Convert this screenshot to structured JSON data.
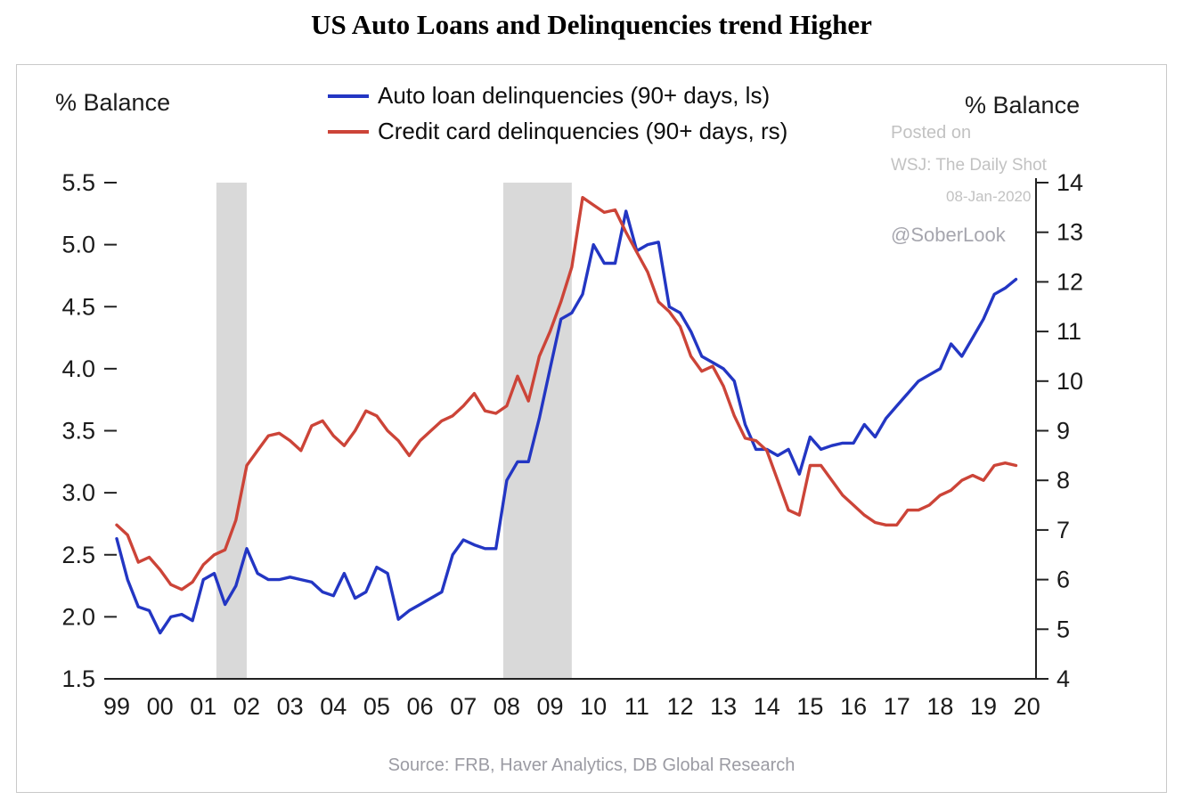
{
  "title": "US Auto Loans and Delinquencies trend Higher",
  "left_axis_label": "% Balance",
  "right_axis_label": "% Balance",
  "legend": [
    {
      "label": "Auto loan delinquencies (90+ days, ls)",
      "color": "#2336c3"
    },
    {
      "label": "Credit card delinquencies (90+ days, rs)",
      "color": "#cc4438"
    }
  ],
  "watermark": {
    "line1": "Posted on",
    "line2": "WSJ: The Daily Shot",
    "line3": "08-Jan-2020",
    "handle": "@SoberLook"
  },
  "source": "Source: FRB, Haver Analytics, DB Global Research",
  "chart_data": {
    "type": "line",
    "title": "US Auto Loans and Delinquencies trend Higher",
    "x_start": 1999,
    "x_step": 0.25,
    "x_range": [
      1999,
      2020.15
    ],
    "x_tick_labels": [
      "99",
      "00",
      "01",
      "02",
      "03",
      "04",
      "05",
      "06",
      "07",
      "08",
      "09",
      "10",
      "11",
      "12",
      "13",
      "14",
      "15",
      "16",
      "17",
      "18",
      "19",
      "20"
    ],
    "x_tick_years": [
      1999,
      2000,
      2001,
      2002,
      2003,
      2004,
      2005,
      2006,
      2007,
      2008,
      2009,
      2010,
      2011,
      2012,
      2013,
      2014,
      2015,
      2016,
      2017,
      2018,
      2019,
      2020
    ],
    "left_axis": {
      "label": "% Balance",
      "range": [
        1.5,
        5.5
      ],
      "ticks": [
        1.5,
        2.0,
        2.5,
        3.0,
        3.5,
        4.0,
        4.5,
        5.0,
        5.5
      ]
    },
    "right_axis": {
      "label": "% Balance",
      "range": [
        4,
        14
      ],
      "ticks": [
        4,
        5,
        6,
        7,
        8,
        9,
        10,
        11,
        12,
        13,
        14
      ]
    },
    "recession_bands": [
      [
        2001.3,
        2002.0
      ],
      [
        2007.92,
        2009.5
      ]
    ],
    "grid": false,
    "legend_position": "top-center",
    "colors": {
      "band": "#d9d9d9",
      "axis": "#222222"
    },
    "series": [
      {
        "key": "auto-loan-delinquencies-line",
        "name": "Auto loan delinquencies (90+ days, ls)",
        "axis": "left",
        "color": "#2336c3",
        "values": [
          2.63,
          2.3,
          2.08,
          2.05,
          1.87,
          2.0,
          2.02,
          1.97,
          2.3,
          2.35,
          2.1,
          2.25,
          2.55,
          2.35,
          2.3,
          2.3,
          2.32,
          2.3,
          2.28,
          2.2,
          2.17,
          2.35,
          2.15,
          2.2,
          2.4,
          2.35,
          1.98,
          2.05,
          2.1,
          2.15,
          2.2,
          2.5,
          2.62,
          2.58,
          2.55,
          2.55,
          3.1,
          3.25,
          3.25,
          3.6,
          4.0,
          4.4,
          4.45,
          4.6,
          5.0,
          4.85,
          4.85,
          5.27,
          4.95,
          5.0,
          5.02,
          4.5,
          4.45,
          4.3,
          4.1,
          4.05,
          4.0,
          3.9,
          3.55,
          3.35,
          3.35,
          3.3,
          3.35,
          3.15,
          3.45,
          3.35,
          3.38,
          3.4,
          3.4,
          3.55,
          3.45,
          3.6,
          3.7,
          3.8,
          3.9,
          3.95,
          4.0,
          4.2,
          4.1,
          4.25,
          4.4,
          4.6,
          4.65,
          4.72
        ]
      },
      {
        "key": "credit-card-delinquencies-line",
        "name": "Credit card delinquencies (90+ days, rs)",
        "axis": "right",
        "color": "#cc4438",
        "values": [
          7.1,
          6.9,
          6.35,
          6.45,
          6.2,
          5.9,
          5.8,
          5.95,
          6.3,
          6.5,
          6.6,
          7.2,
          8.3,
          8.6,
          8.9,
          8.95,
          8.8,
          8.6,
          9.1,
          9.2,
          8.9,
          8.7,
          9.0,
          9.4,
          9.3,
          9.0,
          8.8,
          8.5,
          8.8,
          9.0,
          9.2,
          9.3,
          9.5,
          9.75,
          9.4,
          9.35,
          9.5,
          10.1,
          9.6,
          10.5,
          11.0,
          11.6,
          12.3,
          13.7,
          13.55,
          13.4,
          13.45,
          13.0,
          12.6,
          12.2,
          11.6,
          11.4,
          11.1,
          10.5,
          10.2,
          10.3,
          9.9,
          9.3,
          8.85,
          8.8,
          8.6,
          8.0,
          7.4,
          7.3,
          8.3,
          8.3,
          8.0,
          7.7,
          7.5,
          7.3,
          7.15,
          7.1,
          7.1,
          7.4,
          7.4,
          7.5,
          7.7,
          7.8,
          8.0,
          8.1,
          8.0,
          8.3,
          8.35,
          8.3
        ]
      }
    ]
  }
}
